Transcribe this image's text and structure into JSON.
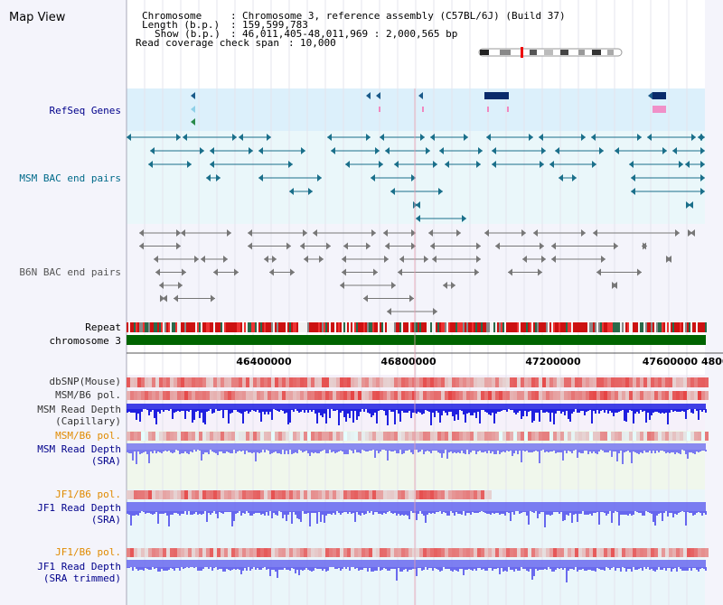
{
  "window": {
    "title": "Map View"
  },
  "header": {
    "chromosome_label": "Chromosome",
    "chromosome_value": "Chromosome 3, reference assembly (C57BL/6J) (Build 37)",
    "length_label": "Length (b.p.)",
    "length_value": "159,599,783",
    "show_label": "Show (b.p.)",
    "show_value": "46,011,405-48,011,969 : 2,000,565 bp",
    "coverage_label": "Read coverage check span",
    "coverage_value": "10,000"
  },
  "tracks": {
    "refseq": "RefSeq Genes",
    "msm_bac": "MSM BAC end pairs",
    "b6n_bac": "B6N BAC end pairs",
    "repeat": "Repeat",
    "chromosome": "chromosome 3",
    "dbsnp": "dbSNP(Mouse)",
    "msm_b6_pol_1": "MSM/B6 pol.",
    "msm_read_depth_cap_1": "MSM Read Depth",
    "msm_read_depth_cap_2": "(Capillary)",
    "msm_b6_pol_2": "MSM/B6 pol.",
    "msm_read_depth_sra_1": "MSM Read Depth",
    "msm_read_depth_sra_2": "(SRA)",
    "jf1_b6_pol_1": "JF1/B6 pol.",
    "jf1_read_depth_sra_1": "JF1 Read Depth",
    "jf1_read_depth_sra_2": "(SRA)",
    "jf1_b6_pol_2": "JF1/B6 pol.",
    "jf1_read_depth_trim_1": "JF1 Read Depth",
    "jf1_read_depth_trim_2": "(SRA trimmed)"
  },
  "axis": {
    "ticks": [
      "46400000",
      "46800000",
      "47200000",
      "47600000",
      "4800"
    ]
  },
  "colors": {
    "title_label": "#000000",
    "blue_label": "#00008b",
    "orange_label": "#e08a00",
    "refseq_bg": "#dcf0fb",
    "bac_bg": "#eaf7fa",
    "chromosome_bar": "#006400",
    "read_depth": "#6666ff",
    "read_depth_dark": "#0000ee",
    "polymorphism": "#e63a3a"
  }
}
